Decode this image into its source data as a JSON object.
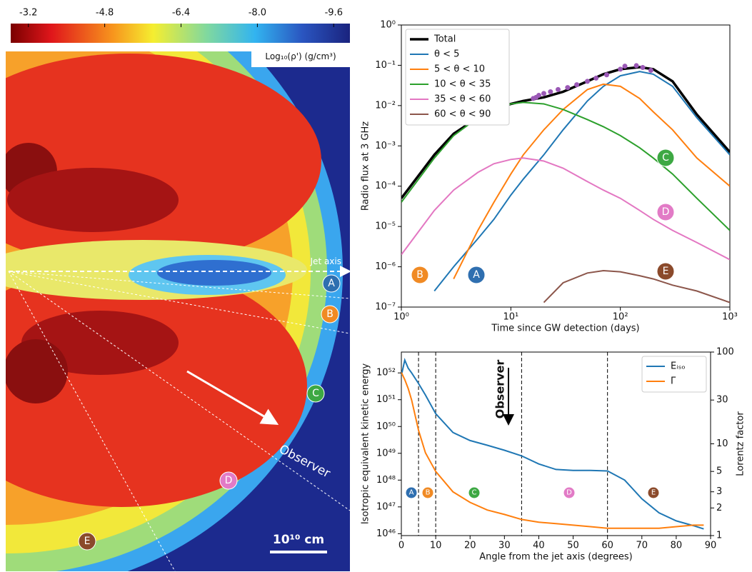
{
  "chart_data": [
    {
      "type": "image",
      "colorbar_label": "Log₁₀(ρ') (g/cm³)",
      "clim": [
        -2.83,
        -9.94
      ],
      "cticks": [
        -3.2,
        -4.8,
        -6.4,
        {
          "value": -8,
          "label": "-8.0"
        },
        -9.6
      ],
      "annotations": {
        "jet_axis": "Jet axis",
        "observer": "Observer",
        "scale_bar": "10¹⁰ cm"
      }
    },
    {
      "type": "line",
      "xlabel": "Time since GW detection (days)",
      "ylabel": "Radio flux at 3 GHz",
      "xscale": "log",
      "yscale": "log",
      "xlim": [
        1,
        1000
      ],
      "xticks": [
        {
          "value": 1,
          "label": "10⁰"
        },
        {
          "value": 10,
          "label": "10¹"
        },
        {
          "value": 100,
          "label": "10²"
        },
        {
          "value": 1000,
          "label": "10³"
        }
      ],
      "ylim": [
        1e-07,
        1
      ],
      "yticks": [
        {
          "value": 1e-07,
          "label": "10⁻⁷"
        },
        {
          "value": 1e-06,
          "label": "10⁻⁶"
        },
        {
          "value": 1e-05,
          "label": "10⁻⁵"
        },
        {
          "value": 0.0001,
          "label": "10⁻⁴"
        },
        {
          "value": 0.001,
          "label": "10⁻³"
        },
        {
          "value": 0.01,
          "label": "10⁻²"
        },
        {
          "value": 0.1,
          "label": "10⁻¹"
        },
        {
          "value": 1,
          "label": "10⁰"
        }
      ],
      "legend": "upper left",
      "x": [
        1,
        2,
        3,
        5,
        7,
        10,
        13,
        20,
        30,
        50,
        70,
        100,
        150,
        200,
        300,
        500,
        1000
      ],
      "series": [
        {
          "name": "Total",
          "color": "#000000",
          "values": [
            5e-05,
            0.0006,
            0.002,
            0.005,
            0.008,
            0.011,
            0.013,
            0.016,
            0.022,
            0.04,
            0.06,
            0.08,
            0.09,
            0.08,
            0.04,
            0.006,
            0.0007
          ]
        },
        {
          "name": "θ < 5",
          "color": "#1f77b4",
          "values": [
            null,
            2.5e-07,
            1e-06,
            5e-06,
            1.5e-05,
            6e-05,
            0.00015,
            0.0006,
            0.0025,
            0.013,
            0.03,
            0.055,
            0.07,
            0.06,
            0.03,
            0.005,
            0.0006
          ]
        },
        {
          "name": "5 < θ < 10",
          "color": "#ff7f0e",
          "values": [
            null,
            null,
            5e-07,
            8e-06,
            4e-05,
            0.0002,
            0.0006,
            0.0025,
            0.008,
            0.025,
            0.034,
            0.03,
            0.015,
            0.007,
            0.0025,
            0.0005,
            0.0001
          ]
        },
        {
          "name": "10 < θ < 35",
          "color": "#2ca02c",
          "values": [
            4e-05,
            0.0005,
            0.0018,
            0.005,
            0.008,
            0.011,
            0.012,
            0.011,
            0.008,
            0.0045,
            0.003,
            0.0018,
            0.0009,
            0.0005,
            0.0002,
            5e-05,
            8e-06
          ]
        },
        {
          "name": "35 < θ < 60",
          "color": "#e377c2",
          "values": [
            2e-06,
            2.5e-05,
            8e-05,
            0.00022,
            0.00036,
            0.00046,
            0.0005,
            0.00042,
            0.00028,
            0.00013,
            8e-05,
            5e-05,
            2.5e-05,
            1.5e-05,
            8e-06,
            4e-06,
            1.5e-06
          ]
        },
        {
          "name": "60 < θ < 90",
          "color": "#8c564b",
          "values": [
            null,
            null,
            null,
            null,
            null,
            null,
            null,
            1.3e-07,
            4e-07,
            7e-07,
            8e-07,
            7.5e-07,
            6e-07,
            5e-07,
            3.5e-07,
            2.5e-07,
            1.3e-07
          ]
        }
      ],
      "observations": {
        "color": "#9b59b6",
        "x": [
          16,
          17,
          18,
          20,
          23,
          27,
          33,
          40,
          50,
          60,
          75,
          100,
          110,
          140,
          160,
          190
        ],
        "values": [
          0.015,
          0.016,
          0.018,
          0.02,
          0.022,
          0.025,
          0.028,
          0.033,
          0.04,
          0.048,
          0.058,
          0.08,
          0.095,
          0.098,
          0.088,
          0.075
        ]
      }
    },
    {
      "type": "line",
      "xlabel": "Angle from the jet axis (degrees)",
      "ylabel": "Isotropic equivalent kinetic energy",
      "y2label": "Lorentz factor",
      "yscale": "log",
      "y2scale": "log",
      "xlim": [
        0,
        90
      ],
      "xticks": [
        0,
        10,
        20,
        30,
        40,
        50,
        60,
        70,
        80,
        90
      ],
      "ylim": [
        8.5e+45,
        6e+52
      ],
      "yticks": [
        {
          "value": 1e+46,
          "label": "10⁴⁶"
        },
        {
          "value": 1e+47,
          "label": "10⁴⁷"
        },
        {
          "value": 1e+48,
          "label": "10⁴⁸"
        },
        {
          "value": 1e+49,
          "label": "10⁴⁹"
        },
        {
          "value": 1e+50,
          "label": "10⁵⁰"
        },
        {
          "value": 1e+51,
          "label": "10⁵¹"
        },
        {
          "value": 1e+52,
          "label": "10⁵²"
        }
      ],
      "y2lim": [
        1,
        100
      ],
      "y2ticks": [
        1,
        2,
        3,
        5,
        10,
        30,
        100
      ],
      "legend": "upper right",
      "vlines": [
        5,
        10,
        35,
        60
      ],
      "annotation": "Observer",
      "x": [
        0,
        1,
        2,
        3,
        5,
        7,
        10,
        15,
        20,
        25,
        30,
        35,
        40,
        45,
        50,
        55,
        60,
        65,
        70,
        75,
        80,
        85,
        88
      ],
      "series": [
        {
          "name": "Eᵢₛₒ",
          "color": "#1f77b4",
          "values": [
            8e+51,
            3e+52,
            1.5e+52,
            1e+52,
            4e+51,
            1.5e+51,
            3e+50,
            6e+49,
            3e+49,
            2e+49,
            1.3e+49,
            8e+48,
            4e+48,
            2.5e+48,
            2.3e+48,
            2.3e+48,
            2.2e+48,
            1e+48,
            2e+47,
            6e+46,
            3e+46,
            2e+46,
            1.5e+46
          ]
        },
        {
          "name": "Γ",
          "color": "#ff7f0e",
          "axis": "y2",
          "values": [
            60,
            50,
            40,
            30,
            14,
            8,
            5,
            3,
            2.3,
            1.9,
            1.7,
            1.5,
            1.4,
            1.35,
            1.3,
            1.25,
            1.2,
            1.2,
            1.2,
            1.2,
            1.25,
            1.3,
            1.3
          ]
        }
      ]
    }
  ],
  "regions": [
    {
      "label": "A",
      "color": "#2f6fb0"
    },
    {
      "label": "B",
      "color": "#f08a24"
    },
    {
      "label": "C",
      "color": "#3da843"
    },
    {
      "label": "D",
      "color": "#e27bc6"
    },
    {
      "label": "E",
      "color": "#8b4a2b"
    }
  ]
}
